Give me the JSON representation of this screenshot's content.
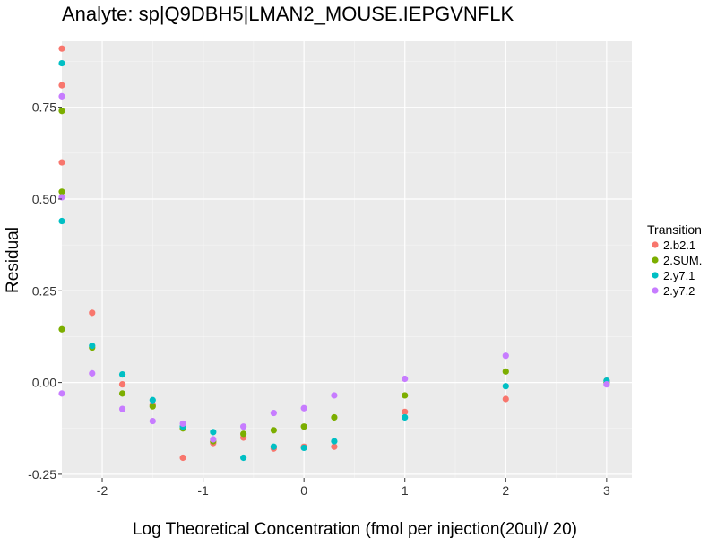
{
  "chart_data": {
    "type": "scatter",
    "title": "Analyte: sp|Q9DBH5|LMAN2_MOUSE.IEPGVNFLK",
    "xlabel": "Log Theoretical Concentration (fmol per injection(20ul)/ 20)",
    "ylabel": "Residual",
    "xlim": [
      -2.4,
      3.25
    ],
    "ylim": [
      -0.26,
      0.93
    ],
    "x_ticks": [
      -2,
      -1,
      0,
      1,
      2,
      3
    ],
    "x_tick_labels": [
      "-2",
      "-1",
      "0",
      "1",
      "2",
      "3"
    ],
    "y_ticks": [
      -0.25,
      0.0,
      0.25,
      0.5,
      0.75
    ],
    "y_tick_labels": [
      "-0.25",
      "0.00",
      "0.25",
      "0.50",
      "0.75"
    ],
    "grid": true,
    "legend_title": "Transition",
    "legend_position": "right",
    "series": [
      {
        "name": "2.b2.1",
        "color": "#F8766D",
        "points": [
          [
            -2.4,
            0.91
          ],
          [
            -2.4,
            0.81
          ],
          [
            -2.4,
            0.6
          ],
          [
            -2.1,
            0.19
          ],
          [
            -1.8,
            -0.005
          ],
          [
            -1.5,
            -0.06
          ],
          [
            -1.2,
            -0.205
          ],
          [
            -0.9,
            -0.165
          ],
          [
            -0.6,
            -0.15
          ],
          [
            -0.3,
            -0.18
          ],
          [
            0.0,
            -0.175
          ],
          [
            0.3,
            -0.175
          ],
          [
            1.0,
            -0.08
          ],
          [
            2.0,
            -0.045
          ],
          [
            3.0,
            0.005
          ]
        ]
      },
      {
        "name": "2.SUM.",
        "color": "#7CAE00",
        "points": [
          [
            -2.4,
            0.74
          ],
          [
            -2.4,
            0.52
          ],
          [
            -2.4,
            0.145
          ],
          [
            -2.1,
            0.095
          ],
          [
            -1.8,
            -0.03
          ],
          [
            -1.5,
            -0.065
          ],
          [
            -1.2,
            -0.125
          ],
          [
            -0.9,
            -0.16
          ],
          [
            -0.6,
            -0.14
          ],
          [
            -0.3,
            -0.13
          ],
          [
            0.0,
            -0.12
          ],
          [
            0.3,
            -0.095
          ],
          [
            1.0,
            -0.035
          ],
          [
            2.0,
            0.03
          ],
          [
            3.0,
            0.0
          ]
        ]
      },
      {
        "name": "2.y7.1",
        "color": "#00BFC4",
        "points": [
          [
            -2.4,
            0.87
          ],
          [
            -2.4,
            0.44
          ],
          [
            -2.1,
            0.1
          ],
          [
            -1.8,
            0.022
          ],
          [
            -1.5,
            -0.048
          ],
          [
            -1.2,
            -0.12
          ],
          [
            -0.9,
            -0.135
          ],
          [
            -0.6,
            -0.205
          ],
          [
            -0.3,
            -0.175
          ],
          [
            0.0,
            -0.178
          ],
          [
            0.3,
            -0.16
          ],
          [
            1.0,
            -0.095
          ],
          [
            2.0,
            -0.01
          ],
          [
            3.0,
            0.005
          ]
        ]
      },
      {
        "name": "2.y7.2",
        "color": "#C77CFF",
        "points": [
          [
            -2.4,
            0.78
          ],
          [
            -2.4,
            0.505
          ],
          [
            -2.4,
            -0.03
          ],
          [
            -2.1,
            0.025
          ],
          [
            -1.8,
            -0.072
          ],
          [
            -1.5,
            -0.105
          ],
          [
            -1.2,
            -0.112
          ],
          [
            -0.9,
            -0.155
          ],
          [
            -0.6,
            -0.12
          ],
          [
            -0.3,
            -0.083
          ],
          [
            0.0,
            -0.07
          ],
          [
            0.3,
            -0.035
          ],
          [
            1.0,
            0.01
          ],
          [
            2.0,
            0.073
          ],
          [
            3.0,
            -0.005
          ]
        ]
      }
    ]
  }
}
